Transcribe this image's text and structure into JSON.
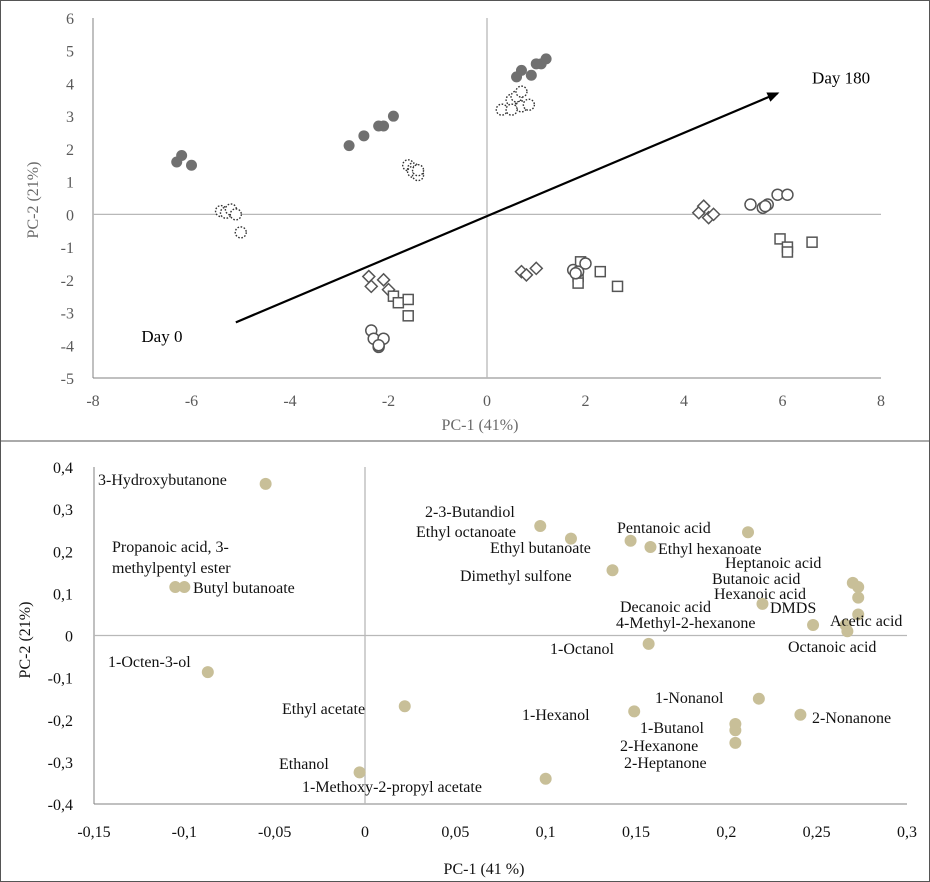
{
  "chart_data": [
    {
      "type": "scatter",
      "title": "",
      "xlabel": "PC-1 (41%)",
      "ylabel": "PC-2 (21%)",
      "xlim": [
        -8,
        8
      ],
      "ylim": [
        -5,
        6
      ],
      "xticks": [
        "-8",
        "-6",
        "-4",
        "-2",
        "0",
        "2",
        "4",
        "6",
        "8"
      ],
      "yticks": [
        "-5",
        "-4",
        "-3",
        "-2",
        "-1",
        "0",
        "1",
        "2",
        "3",
        "4",
        "5",
        "6"
      ],
      "grid": false,
      "annotations": [
        {
          "text": "Day 0",
          "x": -6.6,
          "y": -3.9
        },
        {
          "text": "Day 180",
          "x": 6.6,
          "y": 4.0
        }
      ],
      "arrow": {
        "from": [
          -5.1,
          -3.3
        ],
        "to": [
          5.9,
          3.7
        ]
      },
      "colors": {
        "filled": "#707070",
        "outline": "#555555",
        "dotted": "#333333"
      },
      "series": [
        {
          "marker": "filled-circle",
          "points": [
            [
              -6.3,
              1.6
            ],
            [
              -6.2,
              1.8
            ],
            [
              -6.0,
              1.5
            ],
            [
              -2.8,
              2.1
            ],
            [
              -2.5,
              2.4
            ],
            [
              -2.2,
              2.7
            ],
            [
              -2.1,
              2.7
            ],
            [
              -1.9,
              3.0
            ],
            [
              0.6,
              4.2
            ],
            [
              0.7,
              4.4
            ],
            [
              0.9,
              4.25
            ],
            [
              1.0,
              4.6
            ],
            [
              1.1,
              4.6
            ],
            [
              1.2,
              4.75
            ]
          ]
        },
        {
          "marker": "dotted-circle",
          "points": [
            [
              -5.4,
              0.1
            ],
            [
              -5.3,
              0.05
            ],
            [
              -5.2,
              0.15
            ],
            [
              -5.1,
              0.0
            ],
            [
              -5.0,
              -0.55
            ],
            [
              -1.6,
              1.5
            ],
            [
              -1.5,
              1.4
            ],
            [
              -1.5,
              1.3
            ],
            [
              -1.4,
              1.2
            ],
            [
              -1.4,
              1.35
            ],
            [
              0.3,
              3.2
            ],
            [
              0.5,
              3.5
            ],
            [
              0.6,
              3.6
            ],
            [
              0.7,
              3.3
            ],
            [
              0.7,
              3.75
            ],
            [
              0.85,
              3.35
            ],
            [
              0.5,
              3.2
            ]
          ]
        },
        {
          "marker": "open-diamond",
          "points": [
            [
              -2.4,
              -1.9
            ],
            [
              -2.35,
              -2.2
            ],
            [
              -2.1,
              -2.0
            ],
            [
              -2.0,
              -2.3
            ],
            [
              0.7,
              -1.75
            ],
            [
              0.8,
              -1.85
            ],
            [
              1.0,
              -1.65
            ],
            [
              4.3,
              0.05
            ],
            [
              4.4,
              0.25
            ],
            [
              4.5,
              -0.1
            ],
            [
              4.6,
              0.0
            ]
          ]
        },
        {
          "marker": "open-square",
          "points": [
            [
              -1.9,
              -2.5
            ],
            [
              -1.8,
              -2.7
            ],
            [
              -1.6,
              -2.6
            ],
            [
              -1.6,
              -3.1
            ],
            [
              1.9,
              -1.45
            ],
            [
              1.85,
              -1.9
            ],
            [
              1.85,
              -2.1
            ],
            [
              2.3,
              -1.75
            ],
            [
              2.65,
              -2.2
            ],
            [
              5.95,
              -0.75
            ],
            [
              6.1,
              -1.0
            ],
            [
              6.1,
              -1.15
            ],
            [
              6.6,
              -0.85
            ]
          ]
        },
        {
          "marker": "open-circle",
          "points": [
            [
              -2.35,
              -3.55
            ],
            [
              -2.3,
              -3.8
            ],
            [
              -2.2,
              -4.05
            ],
            [
              -2.1,
              -3.8
            ],
            [
              -2.2,
              -4.0
            ],
            [
              1.75,
              -1.7
            ],
            [
              1.85,
              -1.75
            ],
            [
              2.0,
              -1.5
            ],
            [
              1.8,
              -1.8
            ],
            [
              5.35,
              0.3
            ],
            [
              5.6,
              0.2
            ],
            [
              5.7,
              0.3
            ],
            [
              5.65,
              0.25
            ],
            [
              5.9,
              0.6
            ],
            [
              6.1,
              0.6
            ]
          ]
        }
      ]
    },
    {
      "type": "scatter",
      "title": "",
      "xlabel": "PC-1 (41 %)",
      "ylabel": "PC-2 (21%)",
      "xlim": [
        -0.15,
        0.3
      ],
      "ylim": [
        -0.4,
        0.4
      ],
      "xticks": [
        "-0,15",
        "-0,1",
        "-0,05",
        "0",
        "0,05",
        "0,1",
        "0,15",
        "0,2",
        "0,25",
        "0,3"
      ],
      "yticks": [
        "-0,4",
        "-0,3",
        "-0,2",
        "-0,1",
        "0",
        "0,1",
        "0,2",
        "0,3",
        "0,4"
      ],
      "grid": false,
      "color": "#c8bf98",
      "points": [
        {
          "label": "3-Hydroxybutanone",
          "x": -0.055,
          "y": 0.36
        },
        {
          "label": "Propanoic acid, 3-methylpentyl ester",
          "x": -0.105,
          "y": 0.115
        },
        {
          "label": "Butyl butanoate",
          "x": -0.1,
          "y": 0.115
        },
        {
          "label": "1-Octen-3-ol",
          "x": -0.087,
          "y": -0.087
        },
        {
          "label": "2-3-Butandiol",
          "x": 0.097,
          "y": 0.26
        },
        {
          "label": "Ethyl octanoate",
          "x": 0.114,
          "y": 0.23
        },
        {
          "label": "Ethyl butanoate",
          "x": 0.147,
          "y": 0.225
        },
        {
          "label": "Pentanoic acid",
          "x": 0.212,
          "y": 0.245
        },
        {
          "label": "Ethyl hexanoate",
          "x": 0.158,
          "y": 0.21
        },
        {
          "label": "Dimethyl sulfone",
          "x": 0.137,
          "y": 0.155
        },
        {
          "label": "Heptanoic acid",
          "x": 0.27,
          "y": 0.125
        },
        {
          "label": "Butanoic acid",
          "x": 0.273,
          "y": 0.115
        },
        {
          "label": "Hexanoic acid",
          "x": 0.273,
          "y": 0.09
        },
        {
          "label": "Decanoic acid",
          "x": 0.22,
          "y": 0.075
        },
        {
          "label": "DMDS",
          "x": 0.273,
          "y": 0.05
        },
        {
          "label": "Acetic acid",
          "x": 0.266,
          "y": 0.025
        },
        {
          "label": "4-Methyl-2-hexanone",
          "x": 0.248,
          "y": 0.025
        },
        {
          "label": "Octanoic acid",
          "x": 0.267,
          "y": 0.01
        },
        {
          "label": "1-Octanol",
          "x": 0.157,
          "y": -0.02
        },
        {
          "label": "1-Nonanol",
          "x": 0.218,
          "y": -0.15
        },
        {
          "label": "1-Hexanol",
          "x": 0.149,
          "y": -0.18
        },
        {
          "label": "2-Nonanone",
          "x": 0.241,
          "y": -0.188
        },
        {
          "label": "1-Butanol",
          "x": 0.205,
          "y": -0.21
        },
        {
          "label": "2-Hexanone",
          "x": 0.205,
          "y": -0.225
        },
        {
          "label": "2-Heptanone",
          "x": 0.205,
          "y": -0.255
        },
        {
          "label": "Ethyl acetate",
          "x": 0.022,
          "y": -0.168
        },
        {
          "label": "Ethanol",
          "x": -0.003,
          "y": -0.325
        },
        {
          "label": "1-Methoxy-2-propyl acetate",
          "x": 0.1,
          "y": -0.34
        }
      ]
    }
  ]
}
